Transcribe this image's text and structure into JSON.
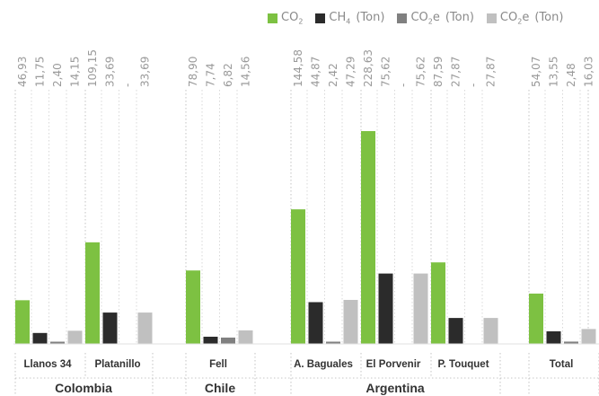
{
  "legend": {
    "items": [
      {
        "name": "co2",
        "base": "CO",
        "sub": "2",
        "suffix": "",
        "unit": "",
        "color": "#7dc142"
      },
      {
        "name": "ch4",
        "base": "CH",
        "sub": "4",
        "suffix": "",
        "unit": "(Ton)",
        "color": "#2b2b2b"
      },
      {
        "name": "co2e-dark",
        "base": "CO",
        "sub": "2",
        "suffix": "e",
        "unit": "(Ton)",
        "color": "#808080"
      },
      {
        "name": "co2e-light",
        "base": "CO",
        "sub": "2",
        "suffix": "e",
        "unit": "(Ton)",
        "color": "#c0c0c0"
      }
    ]
  },
  "chart_data": {
    "type": "bar",
    "series_names": [
      "CO2",
      "CH4 (Ton)",
      "CO2e (Ton)",
      "CO2e (Ton)"
    ],
    "colors": [
      "#7dc142",
      "#2b2b2b",
      "#808080",
      "#c0c0c0"
    ],
    "ylim": [
      0,
      228.63
    ],
    "groups": [
      {
        "country": "Colombia",
        "sites": [
          {
            "name": "Llanos 34",
            "values": [
              46.93,
              11.75,
              2.4,
              14.15
            ]
          },
          {
            "name": "Platanillo",
            "values": [
              109.15,
              33.69,
              null,
              33.69
            ]
          }
        ]
      },
      {
        "country": "Chile",
        "sites": [
          {
            "name": "Fell",
            "values": [
              78.9,
              7.74,
              6.82,
              14.56
            ]
          }
        ]
      },
      {
        "country": "Argentina",
        "sites": [
          {
            "name": "A. Baguales",
            "values": [
              144.58,
              44.87,
              2.42,
              47.29
            ]
          },
          {
            "name": "El Porvenir",
            "values": [
              228.63,
              75.62,
              null,
              75.62
            ]
          },
          {
            "name": "P. Touquet",
            "values": [
              87.59,
              27.87,
              null,
              27.87
            ]
          }
        ]
      },
      {
        "country": "",
        "sites": [
          {
            "name": "Total",
            "values": [
              54.07,
              13.55,
              2.48,
              16.03
            ]
          }
        ]
      }
    ],
    "value_labels": [
      [
        "46,93",
        "11,75",
        "2,40",
        "14,15"
      ],
      [
        "109,15",
        "33,69",
        "-",
        "33,69"
      ],
      [
        "78,90",
        "7,74",
        "6,82",
        "14,56"
      ],
      [
        "144,58",
        "44,87",
        "2,42",
        "47,29"
      ],
      [
        "228,63",
        "75,62",
        "-",
        "75,62"
      ],
      [
        "87,59",
        "27,87",
        "-",
        "27,87"
      ],
      [
        "54,07",
        "13,55",
        "2,48",
        "16,03"
      ]
    ]
  }
}
